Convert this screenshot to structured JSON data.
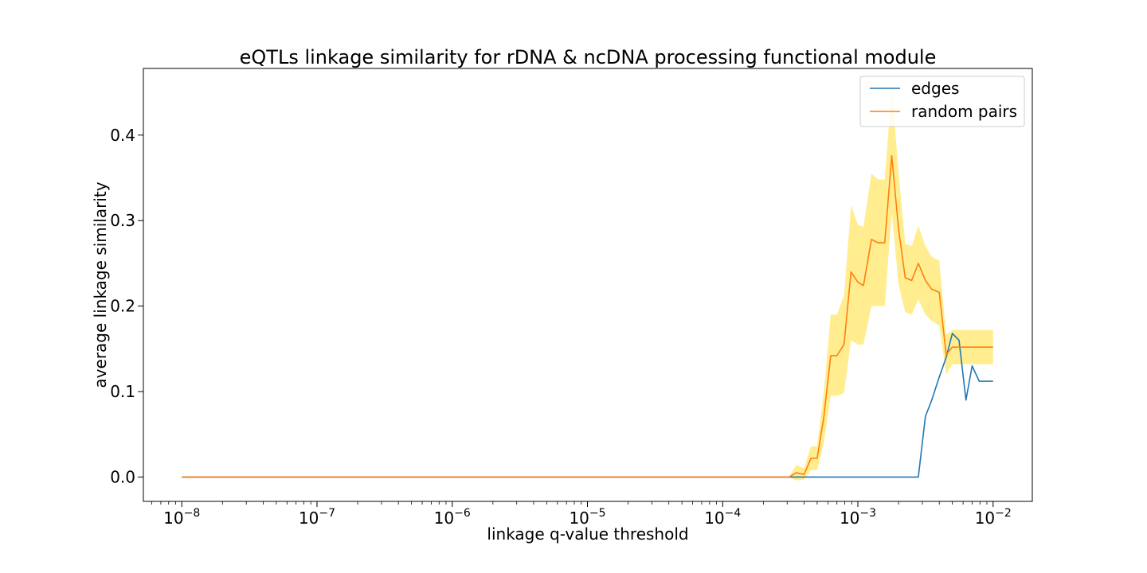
{
  "chart_data": {
    "type": "line",
    "title": "eQTLs linkage similarity for rDNA & ncDNA processing functional module",
    "xlabel": "linkage q-value threshold",
    "ylabel": "average linkage similarity",
    "xscale": "log",
    "xlim": [
      5.2e-09,
      0.0195
    ],
    "ylim": [
      -0.0285,
      0.478
    ],
    "grid": false,
    "legend": {
      "position": "top-right",
      "entries": [
        "edges",
        "random pairs"
      ]
    },
    "x_ticks": [
      {
        "value": 1e-08,
        "base": "10",
        "exp": "−8"
      },
      {
        "value": 1e-07,
        "base": "10",
        "exp": "−7"
      },
      {
        "value": 1e-06,
        "base": "10",
        "exp": "−6"
      },
      {
        "value": 1e-05,
        "base": "10",
        "exp": "−5"
      },
      {
        "value": 0.0001,
        "base": "10",
        "exp": "−4"
      },
      {
        "value": 0.001,
        "base": "10",
        "exp": "−3"
      },
      {
        "value": 0.01,
        "base": "10",
        "exp": "−2"
      }
    ],
    "y_ticks": [
      {
        "value": 0.0,
        "label": "0.0"
      },
      {
        "value": 0.1,
        "label": "0.1"
      },
      {
        "value": 0.2,
        "label": "0.2"
      },
      {
        "value": 0.3,
        "label": "0.3"
      },
      {
        "value": 0.4,
        "label": "0.4"
      }
    ],
    "series": [
      {
        "name": "edges",
        "color": "#1f77b4",
        "x": [
          1e-08,
          0.0003,
          0.00031,
          0.00035,
          0.0004,
          0.00045,
          0.0005,
          0.00056,
          0.00063,
          0.0007,
          0.00079,
          0.00089,
          0.001,
          0.0011,
          0.00126,
          0.00141,
          0.00158,
          0.00178,
          0.002,
          0.00224,
          0.0025,
          0.0028,
          0.00316,
          0.0035,
          0.004,
          0.0045,
          0.005,
          0.0056,
          0.0063,
          0.007,
          0.0079,
          0.0089,
          0.01
        ],
        "y": [
          0.0,
          0.0,
          0.0,
          0.0,
          0.0,
          0.0,
          0.0,
          0.0,
          0.0,
          0.0,
          0.0,
          0.0,
          0.0,
          0.0,
          0.0,
          0.0,
          0.0,
          0.0,
          0.0,
          0.0,
          0.0,
          0.0,
          0.071,
          0.089,
          0.117,
          0.14,
          0.168,
          0.16,
          0.09,
          0.13,
          0.112,
          0.112,
          0.112
        ]
      },
      {
        "name": "random pairs",
        "color": "#ff7f0e",
        "x": [
          1e-08,
          0.0003,
          0.00031,
          0.00035,
          0.0004,
          0.00045,
          0.0005,
          0.00056,
          0.00063,
          0.0007,
          0.00079,
          0.00089,
          0.001,
          0.0011,
          0.00126,
          0.00141,
          0.00158,
          0.00178,
          0.002,
          0.00224,
          0.0025,
          0.0028,
          0.00316,
          0.0035,
          0.004,
          0.0045,
          0.005,
          0.0056,
          0.0063,
          0.007,
          0.0079,
          0.0089,
          0.01
        ],
        "y": [
          0.0,
          0.0,
          0.0,
          0.005,
          0.003,
          0.022,
          0.022,
          0.07,
          0.142,
          0.142,
          0.155,
          0.24,
          0.228,
          0.224,
          0.278,
          0.274,
          0.274,
          0.376,
          0.29,
          0.233,
          0.23,
          0.25,
          0.23,
          0.22,
          0.216,
          0.143,
          0.152,
          0.152,
          0.152,
          0.152,
          0.152,
          0.152,
          0.152
        ],
        "band": {
          "color": "#ffe769",
          "lower": [
            0.0,
            0.0,
            0.0,
            -0.004,
            -0.003,
            0.008,
            0.008,
            0.04,
            0.095,
            0.095,
            0.098,
            0.16,
            0.155,
            0.155,
            0.2,
            0.2,
            0.2,
            0.31,
            0.225,
            0.193,
            0.19,
            0.208,
            0.19,
            0.183,
            0.177,
            0.12,
            0.132,
            0.132,
            0.132,
            0.132,
            0.132,
            0.132,
            0.132
          ],
          "upper": [
            0.0,
            0.0,
            0.0,
            0.014,
            0.01,
            0.036,
            0.036,
            0.1,
            0.19,
            0.19,
            0.212,
            0.318,
            0.295,
            0.293,
            0.355,
            0.348,
            0.348,
            0.455,
            0.356,
            0.273,
            0.27,
            0.294,
            0.27,
            0.258,
            0.253,
            0.166,
            0.172,
            0.172,
            0.172,
            0.172,
            0.172,
            0.172,
            0.172
          ]
        }
      }
    ]
  }
}
